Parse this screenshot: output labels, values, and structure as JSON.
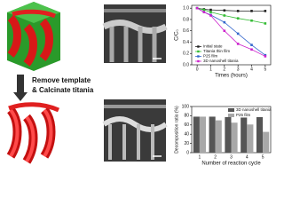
{
  "figure": {
    "step_lines": [
      "Remove template",
      "& Calcinate titania"
    ]
  },
  "chart_data": [
    {
      "type": "line",
      "ylabel": "C/C₀",
      "xlabel": "Times (hours)",
      "x": [
        0,
        0.5,
        1,
        2,
        3,
        4,
        5
      ],
      "xlim": [
        -0.4,
        5.4
      ],
      "xticks": [
        0,
        1,
        2,
        3,
        4,
        5
      ],
      "ylim": [
        0,
        1.05
      ],
      "yticks": [
        {
          "value": 0,
          "label": "0.0"
        },
        {
          "value": 0.2,
          "label": "0.2"
        },
        {
          "value": 0.4,
          "label": "0.4"
        },
        {
          "value": 0.6,
          "label": "0.6"
        },
        {
          "value": 0.8,
          "label": "0.8"
        },
        {
          "value": 1,
          "label": "1.0"
        }
      ],
      "legend": "lower-left",
      "series": [
        {
          "name": "Initial state",
          "color": "#222222",
          "values": [
            1,
            0.98,
            0.97,
            0.96,
            0.95,
            0.95,
            0.95
          ]
        },
        {
          "name": "Titania thin film",
          "color": "#33bb33",
          "values": [
            1,
            0.97,
            0.93,
            0.87,
            0.82,
            0.78,
            0.73
          ]
        },
        {
          "name": "P25 film",
          "color": "#3366cc",
          "values": [
            1,
            0.93,
            0.88,
            0.75,
            0.55,
            0.35,
            0.17
          ]
        },
        {
          "name": "3D nanoshell titania",
          "color": "#cc22cc",
          "values": [
            1,
            0.93,
            0.87,
            0.6,
            0.37,
            0.27,
            0.15
          ]
        }
      ]
    },
    {
      "type": "bar",
      "ylabel": "Decomposition ratio (%)",
      "xlabel": "Number of reaction cycle",
      "categories": [
        "1",
        "2",
        "3",
        "4",
        "5"
      ],
      "ylim": [
        0,
        100
      ],
      "yticks": [
        0,
        20,
        40,
        60,
        80,
        100
      ],
      "legend": "upper-right",
      "series": [
        {
          "name": "3D nanoshell titania",
          "color": "#555555",
          "values": [
            78,
            78,
            77,
            76,
            77
          ]
        },
        {
          "name": "P25 film",
          "color": "#a8a8a8",
          "values": [
            78,
            70,
            65,
            61,
            45
          ]
        }
      ]
    }
  ]
}
